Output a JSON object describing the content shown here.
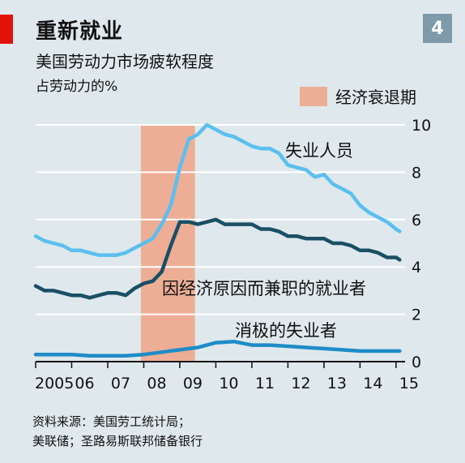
{
  "header": {
    "title": "重新就业",
    "badge": "4",
    "subtitle": "美国劳动力市场疲软程度",
    "unit": "占劳动力的%"
  },
  "legend": {
    "recession_label": "经济衰退期",
    "recession_color": "#edae95"
  },
  "source": {
    "line1": "资料来源：美国劳工统计局；",
    "line2": "美联储；圣路易斯联邦储备银行"
  },
  "chart_data": {
    "type": "line",
    "title": "美国劳动力市场疲软程度",
    "ylabel": "占劳动力的%",
    "xlim": [
      2005,
      2015.25
    ],
    "ylim": [
      0,
      10
    ],
    "yticks": [
      0,
      2,
      4,
      6,
      8,
      10
    ],
    "xticks": [
      {
        "value": 2005,
        "label": "2005"
      },
      {
        "value": 2006,
        "label": "06"
      },
      {
        "value": 2007,
        "label": "07"
      },
      {
        "value": 2008,
        "label": "08"
      },
      {
        "value": 2009,
        "label": "09"
      },
      {
        "value": 2010,
        "label": "10"
      },
      {
        "value": 2011,
        "label": "11"
      },
      {
        "value": 2012,
        "label": "12"
      },
      {
        "value": 2013,
        "label": "13"
      },
      {
        "value": 2014,
        "label": "14"
      },
      {
        "value": 2015,
        "label": "15"
      }
    ],
    "grid": true,
    "y_axis_side": "right",
    "recession": {
      "start": 2007.92,
      "end": 2009.42
    },
    "series": [
      {
        "name": "失业人员",
        "color": "#5bbff0",
        "x": [
          2005.0,
          2005.25,
          2005.5,
          2005.75,
          2006.0,
          2006.25,
          2006.5,
          2006.75,
          2007.0,
          2007.25,
          2007.5,
          2007.75,
          2008.0,
          2008.25,
          2008.5,
          2008.75,
          2009.0,
          2009.25,
          2009.5,
          2009.75,
          2010.0,
          2010.25,
          2010.5,
          2010.75,
          2011.0,
          2011.25,
          2011.5,
          2011.75,
          2012.0,
          2012.25,
          2012.5,
          2012.75,
          2013.0,
          2013.25,
          2013.5,
          2013.75,
          2014.0,
          2014.25,
          2014.5,
          2014.75,
          2015.0,
          2015.1
        ],
        "values": [
          5.3,
          5.1,
          5.0,
          4.9,
          4.7,
          4.7,
          4.6,
          4.5,
          4.5,
          4.5,
          4.6,
          4.8,
          5.0,
          5.2,
          5.8,
          6.6,
          8.2,
          9.4,
          9.6,
          10.0,
          9.8,
          9.6,
          9.5,
          9.3,
          9.1,
          9.0,
          9.0,
          8.8,
          8.3,
          8.2,
          8.1,
          7.8,
          7.9,
          7.5,
          7.3,
          7.1,
          6.6,
          6.3,
          6.1,
          5.9,
          5.6,
          5.5
        ]
      },
      {
        "name": "因经济原因而兼职的就业者",
        "color": "#1b4f66",
        "x": [
          2005.0,
          2005.25,
          2005.5,
          2005.75,
          2006.0,
          2006.25,
          2006.5,
          2006.75,
          2007.0,
          2007.25,
          2007.5,
          2007.75,
          2008.0,
          2008.25,
          2008.5,
          2008.75,
          2009.0,
          2009.25,
          2009.5,
          2009.75,
          2010.0,
          2010.25,
          2010.5,
          2010.75,
          2011.0,
          2011.25,
          2011.5,
          2011.75,
          2012.0,
          2012.25,
          2012.5,
          2012.75,
          2013.0,
          2013.25,
          2013.5,
          2013.75,
          2014.0,
          2014.25,
          2014.5,
          2014.75,
          2015.0,
          2015.1
        ],
        "values": [
          3.2,
          3.0,
          3.0,
          2.9,
          2.8,
          2.8,
          2.7,
          2.8,
          2.9,
          2.9,
          2.8,
          3.1,
          3.3,
          3.4,
          3.8,
          4.9,
          5.9,
          5.9,
          5.8,
          5.9,
          6.0,
          5.8,
          5.8,
          5.8,
          5.8,
          5.6,
          5.6,
          5.5,
          5.3,
          5.3,
          5.2,
          5.2,
          5.2,
          5.0,
          5.0,
          4.9,
          4.7,
          4.7,
          4.6,
          4.4,
          4.4,
          4.3
        ]
      },
      {
        "name": "消极的失业者",
        "color": "#1e8cc8",
        "x": [
          2005.0,
          2005.5,
          2006.0,
          2006.5,
          2007.0,
          2007.5,
          2008.0,
          2008.5,
          2009.0,
          2009.5,
          2010.0,
          2010.5,
          2011.0,
          2011.5,
          2012.0,
          2012.5,
          2013.0,
          2013.5,
          2014.0,
          2014.5,
          2015.0,
          2015.1
        ],
        "values": [
          0.3,
          0.3,
          0.3,
          0.25,
          0.25,
          0.25,
          0.3,
          0.4,
          0.5,
          0.6,
          0.8,
          0.85,
          0.7,
          0.7,
          0.65,
          0.6,
          0.55,
          0.5,
          0.45,
          0.45,
          0.45,
          0.45
        ]
      }
    ]
  }
}
